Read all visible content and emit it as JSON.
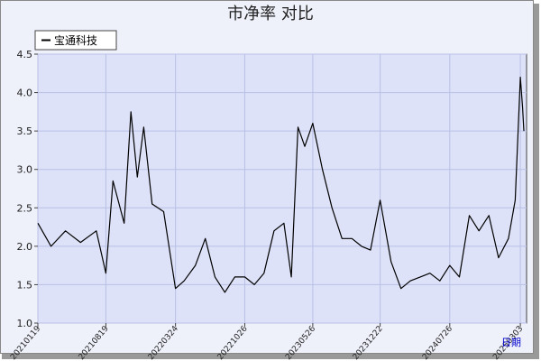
{
  "chart_data": {
    "type": "line",
    "title": "市净率  对比",
    "xlabel": "日期",
    "ylabel": "",
    "ylim": [
      1.0,
      4.5
    ],
    "yticks": [
      "1.0",
      "1.5",
      "2.0",
      "2.5",
      "3.0",
      "3.5",
      "4.0",
      "4.5"
    ],
    "xticks": [
      "20210119",
      "20210819",
      "20220324",
      "20221026",
      "20230526",
      "20231222",
      "20240726",
      "20250303"
    ],
    "grid": true,
    "legend_position": "top-left",
    "colors": {
      "background": "#eef0fa",
      "plot_background": "#dde2f8",
      "grid": "#b9c0e6",
      "line": "#000000",
      "xlabel": "#0000cc"
    },
    "series": [
      {
        "name": "宝通科技",
        "x": [
          "20210119",
          "20210301",
          "20210415",
          "20210601",
          "20210720",
          "20210819",
          "20210910",
          "20211015",
          "20211105",
          "20211125",
          "20211215",
          "20220110",
          "20220215",
          "20220324",
          "20220420",
          "20220525",
          "20220625",
          "20220725",
          "20220825",
          "20220925",
          "20221026",
          "20221125",
          "20221225",
          "20230125",
          "20230225",
          "20230320",
          "20230410",
          "20230501",
          "20230526",
          "20230625",
          "20230725",
          "20230825",
          "20230925",
          "20231025",
          "20231122",
          "20231222",
          "20240125",
          "20240225",
          "20240325",
          "20240425",
          "20240525",
          "20240625",
          "20240726",
          "20240825",
          "20240925",
          "20241025",
          "20241125",
          "20241225",
          "20250125",
          "20250215",
          "20250303",
          "20250310",
          "20250314"
        ],
        "values": [
          2.3,
          2.0,
          2.2,
          2.05,
          2.2,
          1.65,
          2.85,
          2.3,
          3.75,
          2.9,
          3.55,
          2.55,
          2.45,
          1.45,
          1.55,
          1.75,
          2.1,
          1.6,
          1.4,
          1.6,
          1.6,
          1.5,
          1.65,
          2.2,
          2.3,
          1.6,
          3.55,
          3.3,
          3.6,
          3.0,
          2.5,
          2.1,
          2.1,
          2.0,
          1.95,
          2.6,
          1.8,
          1.45,
          1.55,
          1.6,
          1.65,
          1.55,
          1.75,
          1.6,
          2.4,
          2.2,
          2.4,
          1.85,
          2.1,
          2.6,
          4.2,
          3.8,
          3.5
        ]
      }
    ]
  }
}
